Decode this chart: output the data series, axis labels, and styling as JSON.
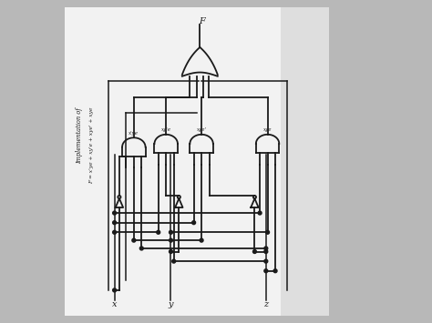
{
  "bg_color": "#b8b8b8",
  "paper_color": "#e8e8e8",
  "line_color": "#1a1a1a",
  "title_line1": "Implementation of",
  "title_line2": "F = x'ye + xy'e + xye' + xye",
  "inputs": [
    "x",
    "y",
    "z"
  ],
  "output": "F",
  "gate_labels": [
    "x'ye",
    "xy'e",
    "xye'",
    "xye"
  ],
  "figsize": [
    4.74,
    3.55
  ],
  "dpi": 100,
  "lw": 1.3
}
